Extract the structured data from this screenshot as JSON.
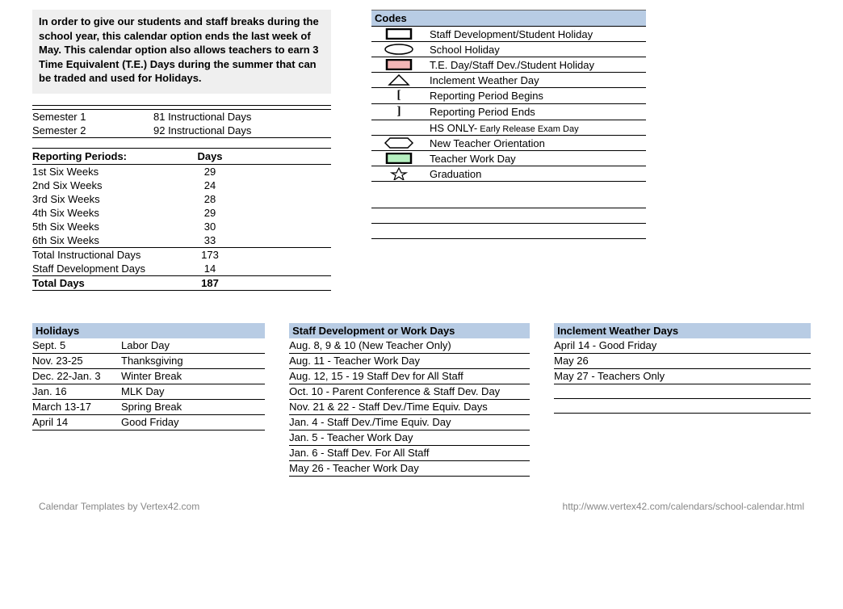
{
  "intro": "In order to give our students and staff breaks during the school year, this calendar option ends the last week of May. This calendar option also allows teachers to earn 3 Time Equivalent (T.E.) Days during the summer that can be traded and used for Holidays.",
  "semesters": [
    {
      "label": "Semester 1",
      "days": "81 Instructional Days"
    },
    {
      "label": "Semester 2",
      "days": "92 Instructional Days"
    }
  ],
  "rp_header_label": "Reporting Periods:",
  "rp_header_days": "Days",
  "reporting_periods": [
    {
      "label": "1st Six Weeks",
      "days": "29"
    },
    {
      "label": "2nd Six Weeks",
      "days": "24"
    },
    {
      "label": "3rd Six Weeks",
      "days": "28"
    },
    {
      "label": "4th Six Weeks",
      "days": "29"
    },
    {
      "label": "5th Six Weeks",
      "days": "30"
    },
    {
      "label": "6th Six Weeks",
      "days": "33"
    }
  ],
  "total_instructional": {
    "label": "Total Instructional Days",
    "days": "173"
  },
  "staff_dev_days": {
    "label": "Staff Development Days",
    "days": "14"
  },
  "total_days": {
    "label": "Total Days",
    "days": "187"
  },
  "codes_title": "Codes",
  "codes": [
    {
      "label": "Staff Development/Student Holiday"
    },
    {
      "label": "School Holiday"
    },
    {
      "label": "T.E. Day/Staff Dev./Student Holiday"
    },
    {
      "label": "Inclement Weather Day"
    },
    {
      "label": "Reporting Period Begins"
    },
    {
      "label": "Reporting Period Ends"
    },
    {
      "label_prefix": "HS ONLY-",
      "label_suffix": " Early Release Exam Day"
    },
    {
      "label": "New Teacher Orientation"
    },
    {
      "label": "Teacher Work Day"
    },
    {
      "label": "Graduation"
    }
  ],
  "icon_colors": {
    "outline": "#000000",
    "te_fill": "#f4b6b6",
    "teacher_fill": "#b6f0c0"
  },
  "holidays_title": "Holidays",
  "holidays": [
    {
      "date": "Sept. 5",
      "name": "Labor Day"
    },
    {
      "date": "Nov. 23-25",
      "name": "Thanksgiving"
    },
    {
      "date": "Dec. 22-Jan. 3",
      "name": "Winter Break"
    },
    {
      "date": "Jan. 16",
      "name": "MLK Day"
    },
    {
      "date": "March 13-17",
      "name": "Spring Break"
    },
    {
      "date": "April 14",
      "name": "Good Friday"
    }
  ],
  "staff_title": "Staff Development or Work Days",
  "staff_days": [
    "Aug. 8, 9 & 10 (New Teacher Only)",
    "Aug. 11 - Teacher Work Day",
    "Aug. 12, 15 - 19 Staff Dev for All Staff",
    "Oct. 10 - Parent Conference & Staff Dev. Day",
    "Nov. 21 & 22 - Staff Dev./Time Equiv. Days",
    "Jan. 4 - Staff Dev./Time Equiv. Day",
    "Jan. 5 - Teacher Work Day",
    "Jan. 6 - Staff Dev. For All Staff",
    "May 26 - Teacher Work Day"
  ],
  "weather_title": "Inclement Weather Days",
  "weather_days": [
    "April 14 - Good Friday",
    "May 26",
    "May 27 - Teachers Only"
  ],
  "footer_left": "Calendar Templates by Vertex42.com",
  "footer_right": "http://www.vertex42.com/calendars/school-calendar.html",
  "header_bg": "#b8cce4"
}
